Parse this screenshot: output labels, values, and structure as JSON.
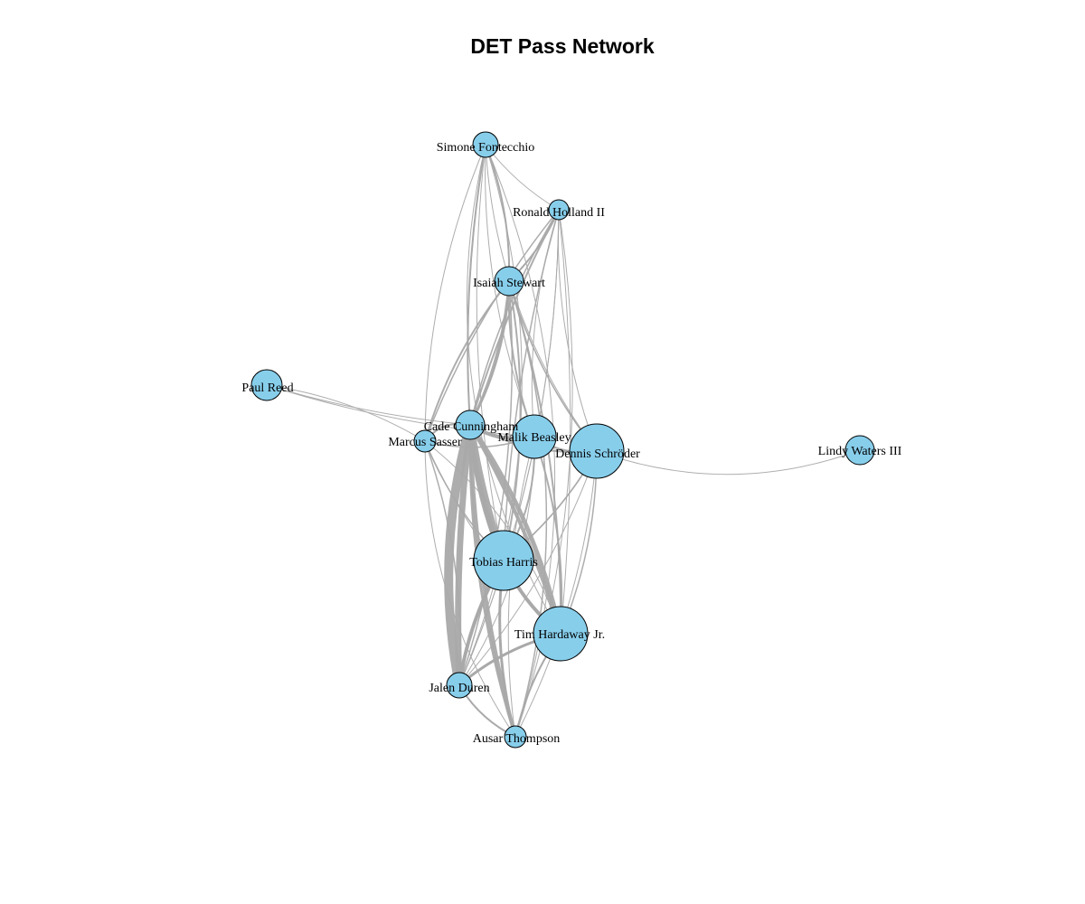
{
  "title": "DET Pass Network",
  "colors": {
    "node_fill": "#87CEEB",
    "node_stroke": "#000000",
    "edge": "#A9A9A9"
  },
  "nodes": [
    {
      "id": "simone",
      "label": "Simone Fontecchio",
      "size": "small"
    },
    {
      "id": "holland",
      "label": "Ronald Holland II",
      "size": "small"
    },
    {
      "id": "stewart",
      "label": "Isaiah Stewart",
      "size": "small"
    },
    {
      "id": "reed",
      "label": "Paul Reed",
      "size": "small"
    },
    {
      "id": "cade",
      "label": "Cade Cunningham",
      "size": "small"
    },
    {
      "id": "sasser",
      "label": "Marcus Sasser",
      "size": "small"
    },
    {
      "id": "beasley",
      "label": "Malik Beasley",
      "size": "medium"
    },
    {
      "id": "schroder",
      "label": "Dennis Schröder",
      "size": "large"
    },
    {
      "id": "waters",
      "label": "Lindy Waters III",
      "size": "small"
    },
    {
      "id": "harris",
      "label": "Tobias Harris",
      "size": "largest"
    },
    {
      "id": "hardaway",
      "label": "Tim Hardaway Jr.",
      "size": "large"
    },
    {
      "id": "duren",
      "label": "Jalen Duren",
      "size": "small"
    },
    {
      "id": "thompson",
      "label": "Ausar Thompson",
      "size": "small"
    }
  ]
}
